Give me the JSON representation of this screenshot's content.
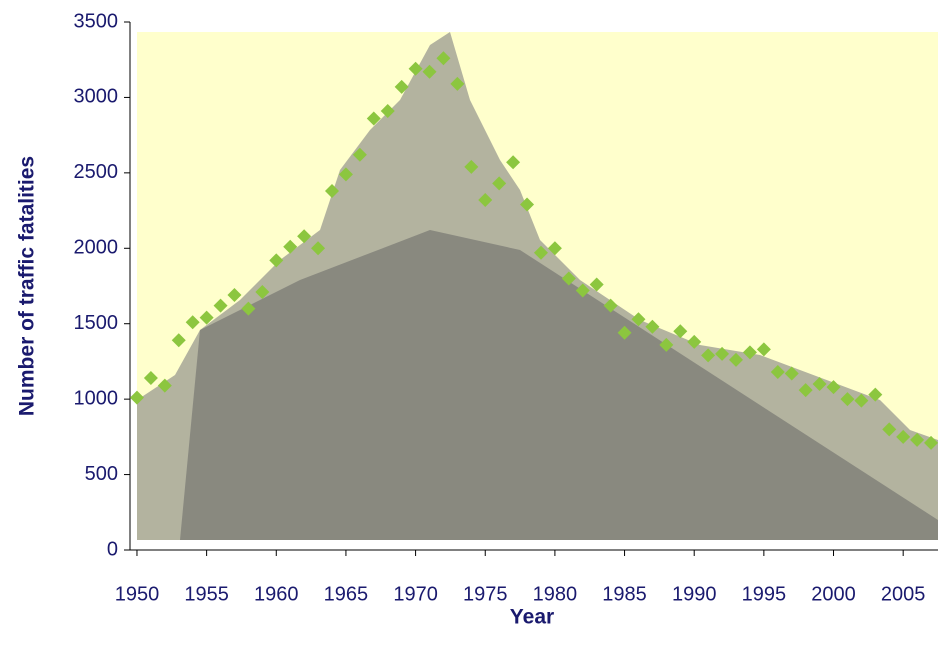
{
  "chart_data": {
    "type": "scatter",
    "x_label": "Year",
    "y_label": "Number of traffic fatalities",
    "series": [
      {
        "name": "Traffic fatalities",
        "color": "#8cc63f",
        "x": [
          1950,
          1951,
          1952,
          1953,
          1954,
          1955,
          1956,
          1957,
          1958,
          1959,
          1960,
          1961,
          1962,
          1963,
          1964,
          1965,
          1966,
          1967,
          1968,
          1969,
          1970,
          1971,
          1972,
          1973,
          1974,
          1975,
          1976,
          1977,
          1978,
          1979,
          1980,
          1981,
          1982,
          1983,
          1984,
          1985,
          1986,
          1987,
          1988,
          1989,
          1990,
          1991,
          1992,
          1993,
          1994,
          1995,
          1996,
          1997,
          1998,
          1999,
          2000,
          2001,
          2002,
          2003,
          2004,
          2005,
          2006,
          2007
        ],
        "values": [
          1010,
          1140,
          1090,
          1390,
          1510,
          1540,
          1620,
          1690,
          1600,
          1710,
          1920,
          2010,
          2080,
          2000,
          2380,
          2490,
          2620,
          2860,
          2910,
          3070,
          3190,
          3170,
          3260,
          3090,
          2540,
          2320,
          2430,
          2570,
          2290,
          1970,
          2000,
          1800,
          1720,
          1760,
          1620,
          1440,
          1530,
          1480,
          1360,
          1450,
          1380,
          1290,
          1300,
          1260,
          1310,
          1330,
          1180,
          1170,
          1060,
          1100,
          1080,
          1000,
          990,
          1030,
          800,
          750,
          730,
          710
        ]
      }
    ],
    "xlim": [
      1949.5,
      2007.5
    ],
    "xticks": [
      1950,
      1955,
      1960,
      1965,
      1970,
      1975,
      1980,
      1985,
      1990,
      1995,
      2000,
      2005
    ],
    "ylim": [
      0,
      3500
    ],
    "yticks": [
      0,
      500,
      1000,
      1500,
      2000,
      2500,
      3000,
      3500
    ]
  }
}
